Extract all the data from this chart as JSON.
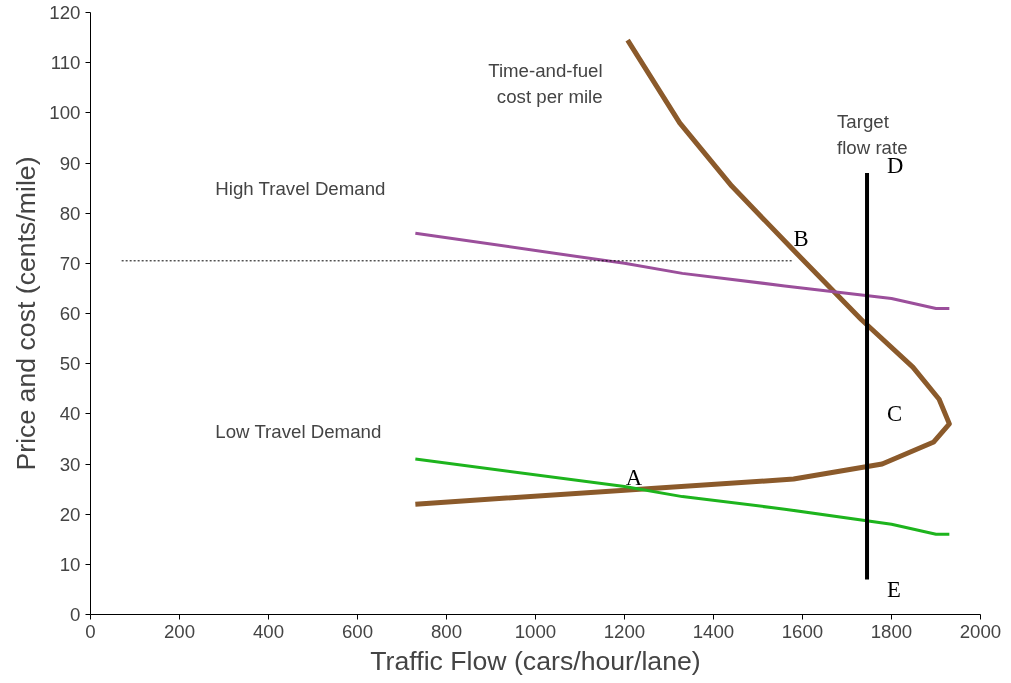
{
  "chart_data": {
    "type": "line",
    "xlabel": "Traffic Flow (cars/hour/lane)",
    "ylabel": "Price and cost (cents/mile)",
    "xlim": [
      0,
      2000
    ],
    "xticks": [
      0,
      200,
      400,
      600,
      800,
      1000,
      1200,
      1400,
      1600,
      1800,
      2000
    ],
    "ylim": [
      0,
      120
    ],
    "yticks": [
      0,
      10,
      20,
      30,
      40,
      50,
      60,
      70,
      80,
      90,
      100,
      110,
      120
    ],
    "grid": false,
    "legend": false,
    "marker": "none",
    "series": [
      {
        "name": "Time-and-fuel\ncost per mile",
        "color": "#8b5a2b",
        "x": [
          1207,
          1324,
          1441,
          1580,
          1732,
          1848,
          1907,
          1930,
          1895,
          1779,
          1580,
          730
        ],
        "values": [
          114.5,
          98,
          85.4,
          72.6,
          58.8,
          49.3,
          42.9,
          38,
          34.4,
          30,
          27,
          22
        ]
      },
      {
        "name": "High Travel Demand",
        "color": "#9b4f9b",
        "x": [
          730,
          1200,
          1330,
          1560,
          1800,
          1900,
          1930
        ],
        "values": [
          76,
          70,
          68,
          65.5,
          63,
          61,
          61
        ]
      },
      {
        "name": "Low Travel Demand",
        "color": "#1db41d",
        "x": [
          730,
          1200,
          1330,
          1560,
          1800,
          1900,
          1930
        ],
        "values": [
          31,
          25.5,
          23.5,
          21,
          18,
          16,
          16
        ]
      },
      {
        "color": "#000000",
        "x": [
          70,
          1580
        ],
        "values": [
          70.5,
          70.5
        ],
        "line_style": "dotted"
      },
      {
        "name": "Target\nflow rate",
        "color": "#000000",
        "x": [
          1745,
          1745
        ],
        "values": [
          7,
          88
        ]
      }
    ],
    "annotations": [
      {
        "text": "A",
        "x": 1230,
        "y": 25
      },
      {
        "text": "B",
        "x": 1580,
        "y": 72.6
      },
      {
        "text": "C",
        "x": 1745,
        "y": 40
      },
      {
        "text": "D",
        "x": 1745,
        "y": 88
      },
      {
        "text": "E",
        "x": 1745,
        "y": 7
      }
    ]
  }
}
